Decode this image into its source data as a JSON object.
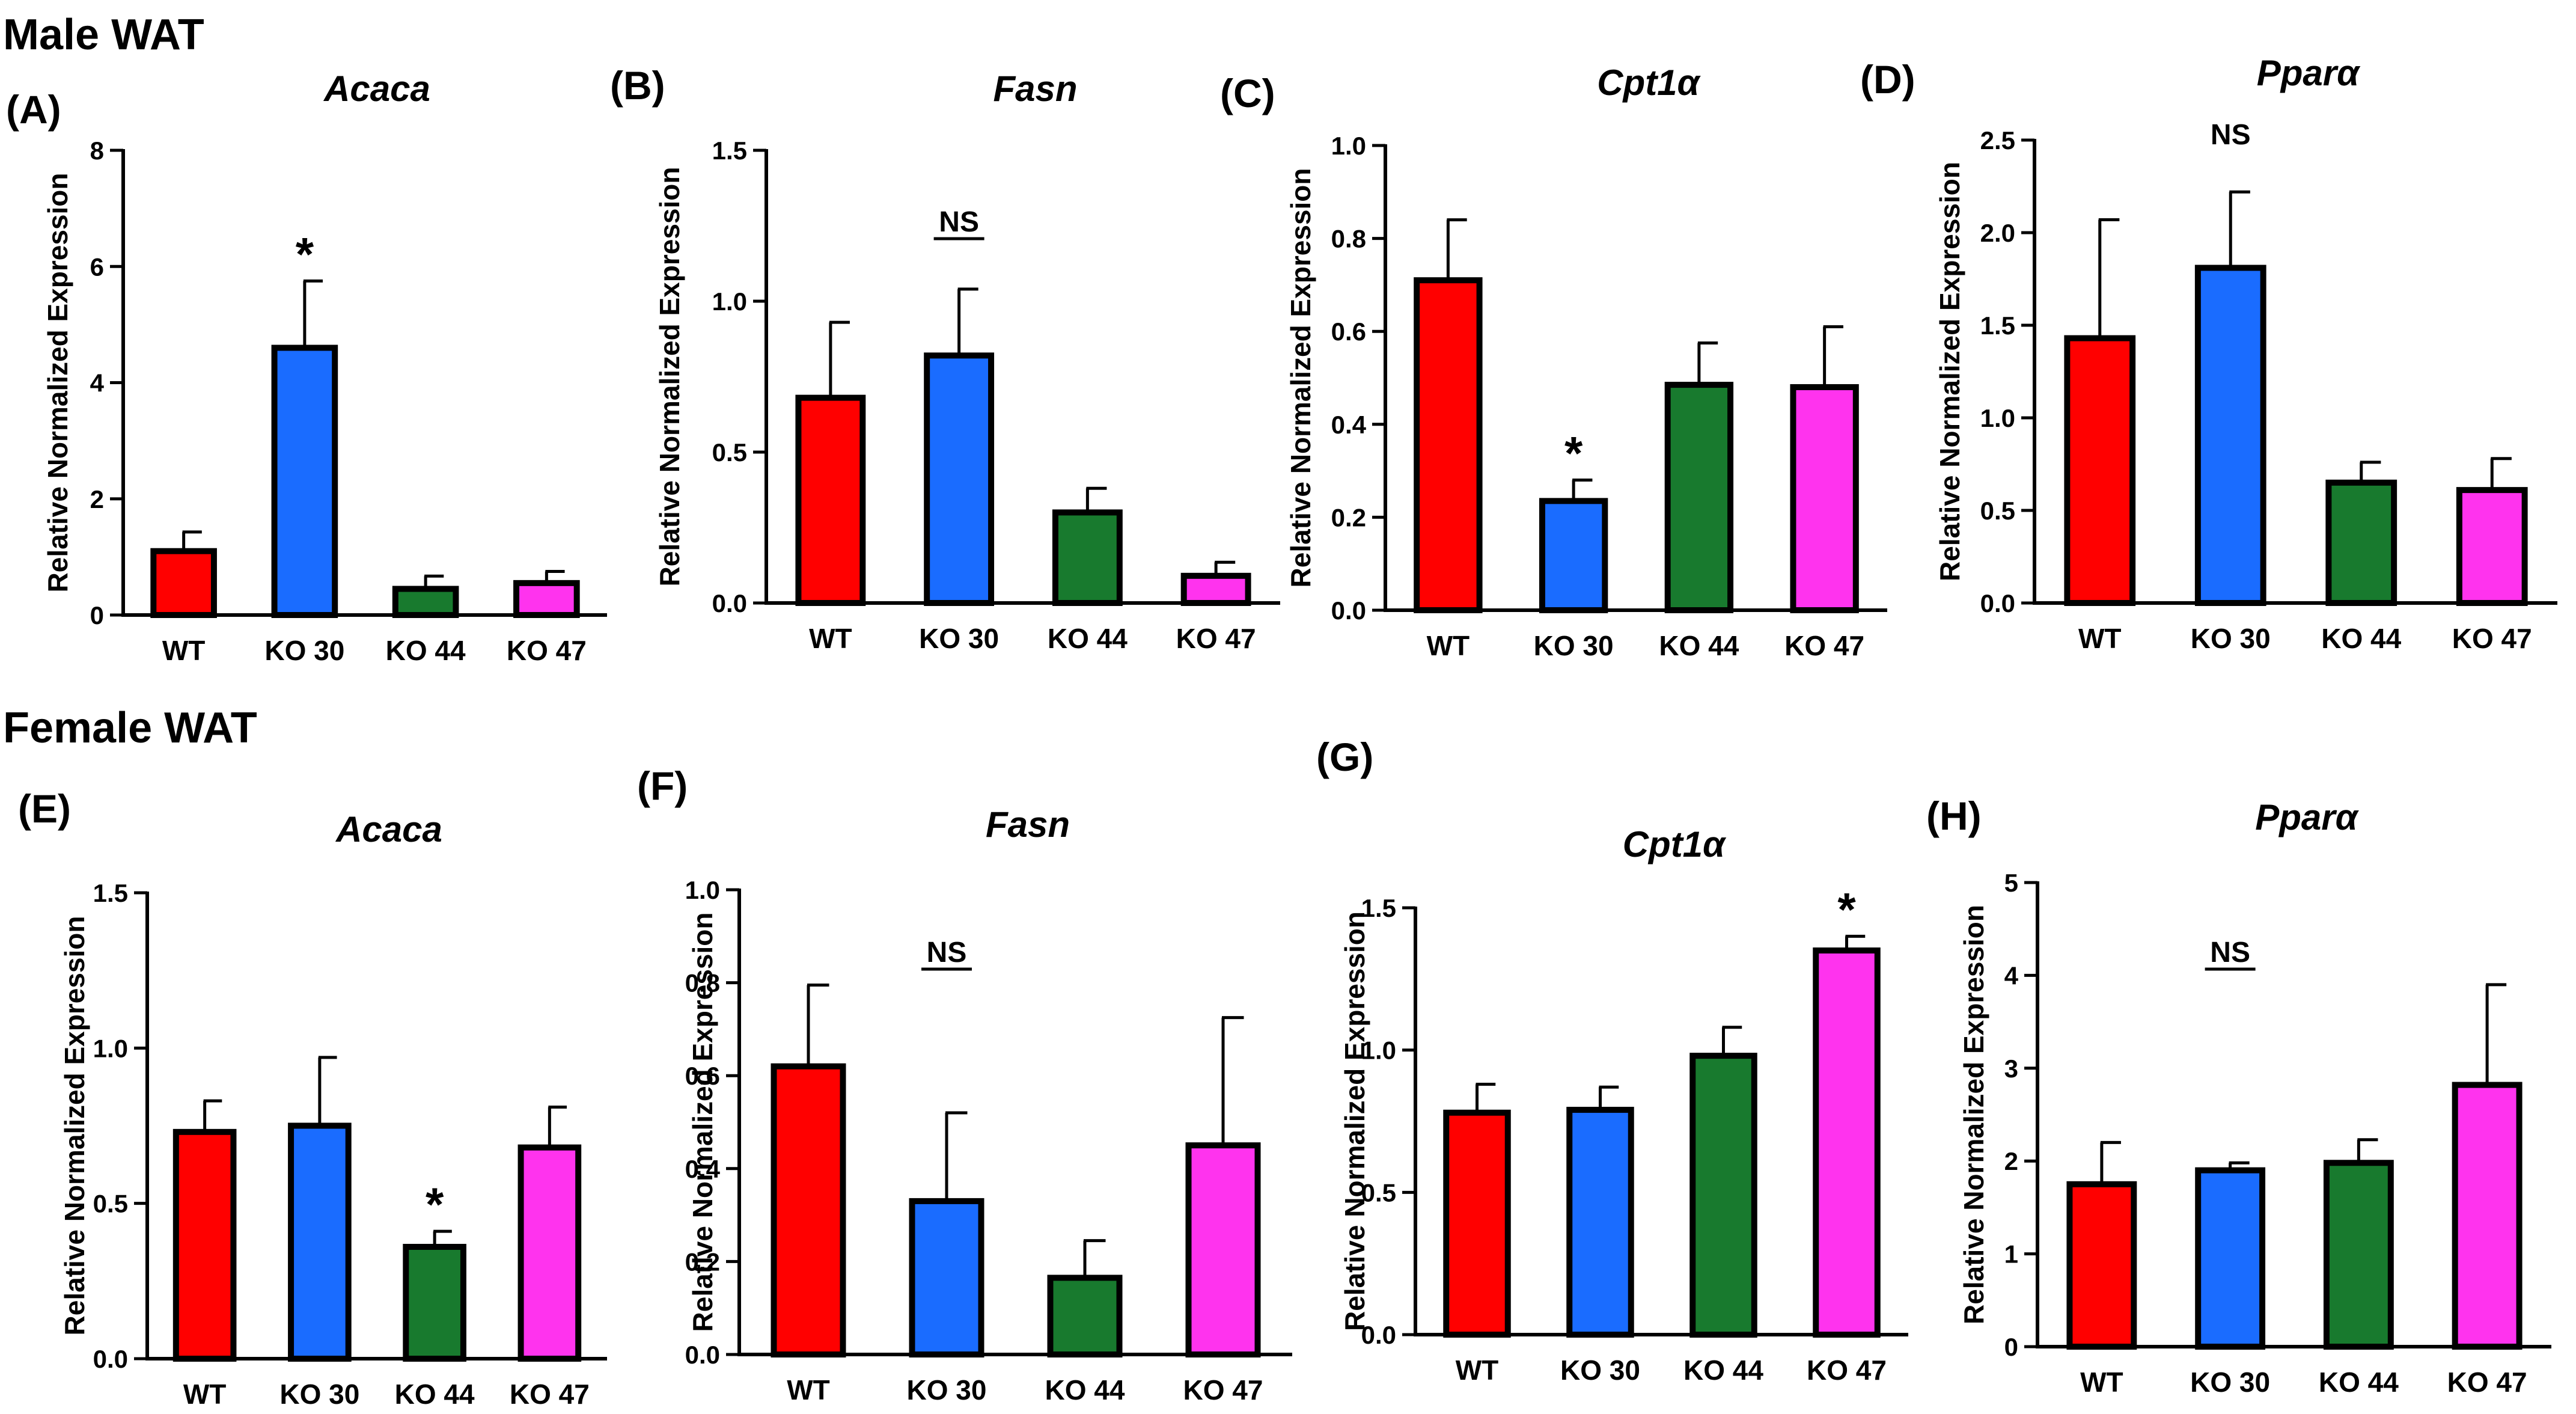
{
  "figure": {
    "sections": [
      "Male WAT",
      "Female WAT"
    ]
  },
  "chart_data": [
    {
      "panel": "(A)",
      "type": "bar",
      "title": "Acaca",
      "ylabel": "Relative Normalized Expression",
      "categories": [
        "WT",
        "KO 30",
        "KO 44",
        "KO 47"
      ],
      "values": [
        1.1,
        4.6,
        0.45,
        0.55
      ],
      "errors": [
        0.33,
        1.15,
        0.22,
        0.2
      ],
      "ylim": [
        0,
        8
      ],
      "yticks": [
        "0",
        "2",
        "4",
        "6",
        "8"
      ],
      "annotations": [
        {
          "index": 1,
          "text": "*"
        }
      ]
    },
    {
      "panel": "(B)",
      "type": "bar",
      "title": "Fasn",
      "ylabel": "Relative Normalized Expression",
      "categories": [
        "WT",
        "KO 30",
        "KO 44",
        "KO 47"
      ],
      "values": [
        0.68,
        0.82,
        0.3,
        0.09
      ],
      "errors": [
        0.25,
        0.22,
        0.08,
        0.045
      ],
      "ylim": [
        0,
        1.5
      ],
      "yticks": [
        "0.0",
        "0.5",
        "1.0",
        "1.5"
      ],
      "ns_label": "NS",
      "annotations": []
    },
    {
      "panel": "(C)",
      "type": "bar",
      "title": "Cpt1α",
      "ylabel": "Relative Normalized Expression",
      "categories": [
        "WT",
        "KO 30",
        "KO 44",
        "KO 47"
      ],
      "values": [
        0.71,
        0.235,
        0.485,
        0.48
      ],
      "errors": [
        0.13,
        0.045,
        0.09,
        0.13
      ],
      "ylim": [
        0,
        1.0
      ],
      "yticks": [
        "0.0",
        "0.2",
        "0.4",
        "0.6",
        "0.8",
        "1.0"
      ],
      "annotations": [
        {
          "index": 1,
          "text": "*"
        }
      ]
    },
    {
      "panel": "(D)",
      "type": "bar",
      "title": "Pparα",
      "ylabel": "Relative Normalized Expression",
      "categories": [
        "WT",
        "KO 30",
        "KO 44",
        "KO 47"
      ],
      "values": [
        1.43,
        1.81,
        0.65,
        0.61
      ],
      "errors": [
        0.64,
        0.41,
        0.11,
        0.17
      ],
      "ylim": [
        0,
        2.5
      ],
      "yticks": [
        "0.0",
        "0.5",
        "1.0",
        "1.5",
        "2.0",
        "2.5"
      ],
      "ns_label": "NS",
      "annotations": []
    },
    {
      "panel": "(E)",
      "type": "bar",
      "title": "Acaca",
      "ylabel": "Relative Normalized Expression",
      "categories": [
        "WT",
        "KO 30",
        "KO 44",
        "KO 47"
      ],
      "values": [
        0.73,
        0.75,
        0.36,
        0.68
      ],
      "errors": [
        0.1,
        0.22,
        0.05,
        0.13
      ],
      "ylim": [
        0,
        1.5
      ],
      "yticks": [
        "0.0",
        "0.5",
        "1.0",
        "1.5"
      ],
      "annotations": [
        {
          "index": 2,
          "text": "*"
        }
      ]
    },
    {
      "panel": "(F)",
      "type": "bar",
      "title": "Fasn",
      "ylabel": "Relative Normalized Expression",
      "categories": [
        "WT",
        "KO 30",
        "KO 44",
        "KO 47"
      ],
      "values": [
        0.62,
        0.33,
        0.165,
        0.45
      ],
      "errors": [
        0.175,
        0.19,
        0.08,
        0.275
      ],
      "ylim": [
        0,
        1.0
      ],
      "yticks": [
        "0.0",
        "0.2",
        "0.4",
        "0.6",
        "0.8",
        "1.0"
      ],
      "ns_label": "NS",
      "annotations": []
    },
    {
      "panel": "(G)",
      "type": "bar",
      "title": "Cpt1α",
      "ylabel": "Relative Normalized Expression",
      "categories": [
        "WT",
        "KO 30",
        "KO 44",
        "KO 47"
      ],
      "values": [
        0.78,
        0.79,
        0.98,
        1.35
      ],
      "errors": [
        0.1,
        0.08,
        0.1,
        0.05
      ],
      "ylim": [
        0,
        1.5
      ],
      "yticks": [
        "0.0",
        "0.5",
        "1.0",
        "1.5"
      ],
      "annotations": [
        {
          "index": 3,
          "text": "*"
        }
      ]
    },
    {
      "panel": "(H)",
      "type": "bar",
      "title": "Pparα",
      "ylabel": "Relative Normalized Expression",
      "categories": [
        "WT",
        "KO 30",
        "KO 44",
        "KO 47"
      ],
      "values": [
        1.75,
        1.9,
        1.98,
        2.82
      ],
      "errors": [
        0.45,
        0.08,
        0.25,
        1.08
      ],
      "ylim": [
        0,
        5
      ],
      "yticks": [
        "0",
        "1",
        "2",
        "3",
        "4",
        "5"
      ],
      "ns_label": "NS",
      "annotations": []
    }
  ],
  "colors": {
    "WT": "#ff0000",
    "KO 30": "#1a6cff",
    "KO 44": "#187a2e",
    "KO 47": "#ff33ee",
    "outline": "#000000"
  }
}
